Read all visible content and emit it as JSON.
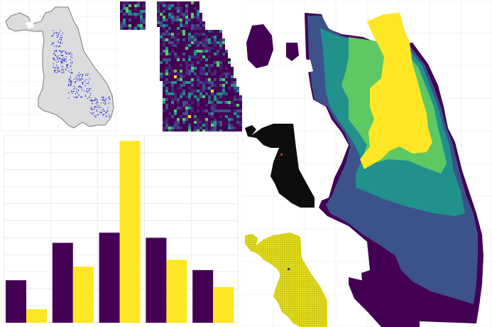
{
  "title": "",
  "panels": {
    "points_map": {
      "kind": "scatter-map",
      "outline_color": "#7a7a7a",
      "fill_color": "#dcdcdc",
      "point_color": "#1f1fe0"
    },
    "density_grid": {
      "kind": "heatmap",
      "colormap": "viridis",
      "background": "#440154"
    },
    "contour_map": {
      "kind": "filled-contour",
      "colormap": "viridis",
      "levels": 6
    },
    "dark_grid": {
      "kind": "heatmap",
      "base_color": "#0d0d0d",
      "highlight_color": "#c0392b"
    },
    "yellow_grid": {
      "kind": "heatmap",
      "base_color": "#f2ea18",
      "grid_color": "#8a8a20",
      "highlight_color": "#3a3a6a"
    }
  },
  "chart_data": {
    "type": "bar",
    "grid": true,
    "legend": "none",
    "ylim": [
      0,
      11
    ],
    "groups": 5,
    "series": [
      {
        "color": "#440154",
        "values": [
          2.5,
          4.7,
          5.3,
          5.0,
          3.1
        ]
      },
      {
        "color": "#fde725",
        "values": [
          0.8,
          3.3,
          10.7,
          3.7,
          2.1
        ]
      }
    ]
  },
  "colors": {
    "viridis": [
      "#440154",
      "#3b528b",
      "#21918c",
      "#5ec962",
      "#fde725"
    ],
    "grid_line": "#e6e6e6"
  }
}
